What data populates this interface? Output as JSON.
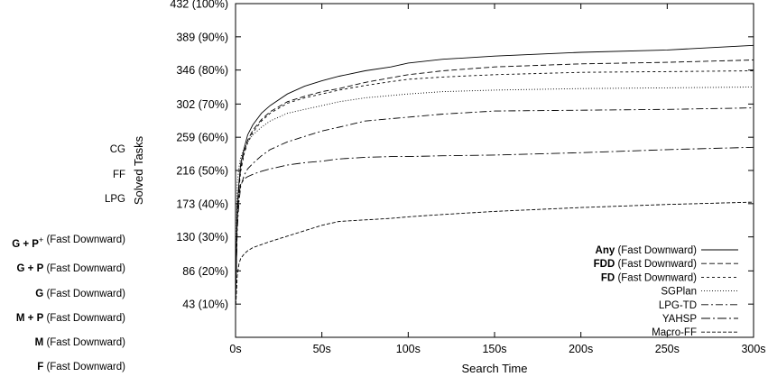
{
  "chart_data": {
    "type": "line",
    "title": "",
    "xlabel": "Search Time",
    "ylabel": "Solved Tasks",
    "xlim": [
      0,
      300
    ],
    "ylim": [
      0,
      432
    ],
    "x_ticks": [
      {
        "value": 0,
        "label": "0s"
      },
      {
        "value": 50,
        "label": "50s"
      },
      {
        "value": 100,
        "label": "100s"
      },
      {
        "value": 150,
        "label": "150s"
      },
      {
        "value": 200,
        "label": "200s"
      },
      {
        "value": 250,
        "label": "250s"
      },
      {
        "value": 300,
        "label": "300s"
      }
    ],
    "y_ticks": [
      {
        "value": 43,
        "label": "43 (10%)"
      },
      {
        "value": 86,
        "label": "86 (20%)"
      },
      {
        "value": 130,
        "label": "130 (30%)"
      },
      {
        "value": 173,
        "label": "173 (40%)"
      },
      {
        "value": 216,
        "label": "216 (50%)"
      },
      {
        "value": 259,
        "label": "259 (60%)"
      },
      {
        "value": 302,
        "label": "302 (70%)"
      },
      {
        "value": 346,
        "label": "346 (80%)"
      },
      {
        "value": 389,
        "label": "389 (90%)"
      },
      {
        "value": 432,
        "label": "432 (100%)"
      }
    ],
    "grid": false,
    "legend_position": "bottom-right",
    "series": [
      {
        "name": "Any",
        "name_suffix": " (Fast Downward)",
        "bold": true,
        "dash": "",
        "x": [
          0,
          1,
          2,
          3,
          5,
          7,
          10,
          15,
          20,
          30,
          40,
          50,
          60,
          75,
          90,
          100,
          120,
          150,
          200,
          250,
          300
        ],
        "y": [
          45,
          170,
          200,
          225,
          245,
          262,
          275,
          290,
          300,
          315,
          325,
          332,
          338,
          345,
          350,
          355,
          360,
          364,
          369,
          372,
          378
        ]
      },
      {
        "name": "FDD",
        "name_suffix": " (Fast Downward)",
        "bold": true,
        "dash": "6,3",
        "x": [
          0,
          1,
          2,
          3,
          5,
          7,
          10,
          15,
          20,
          30,
          40,
          50,
          60,
          75,
          90,
          100,
          120,
          150,
          200,
          250,
          300
        ],
        "y": [
          42,
          160,
          195,
          220,
          240,
          255,
          268,
          282,
          292,
          305,
          312,
          318,
          322,
          330,
          336,
          340,
          345,
          350,
          354,
          356,
          359
        ]
      },
      {
        "name": "FD",
        "name_suffix": " (Fast Downward)",
        "bold": true,
        "dash": "3,3",
        "x": [
          0,
          1,
          2,
          3,
          5,
          7,
          10,
          15,
          20,
          30,
          40,
          50,
          60,
          75,
          90,
          100,
          120,
          150,
          200,
          250,
          300
        ],
        "y": [
          40,
          155,
          192,
          215,
          238,
          252,
          265,
          280,
          290,
          303,
          310,
          315,
          320,
          326,
          331,
          334,
          337,
          340,
          343,
          344,
          345
        ]
      },
      {
        "name": "SGPlan",
        "name_suffix": "",
        "bold": false,
        "dash": "1,2",
        "x": [
          0,
          1,
          2,
          3,
          5,
          7,
          10,
          15,
          20,
          30,
          40,
          50,
          60,
          75,
          90,
          100,
          120,
          150,
          200,
          250,
          300
        ],
        "y": [
          60,
          200,
          220,
          233,
          245,
          253,
          262,
          272,
          280,
          290,
          295,
          300,
          305,
          310,
          313,
          315,
          318,
          320,
          322,
          323,
          324
        ]
      },
      {
        "name": "LPG-TD",
        "name_suffix": "",
        "bold": false,
        "dash": "8,3,2,3",
        "x": [
          0,
          1,
          2,
          3,
          5,
          7,
          10,
          15,
          20,
          30,
          40,
          50,
          60,
          75,
          90,
          100,
          120,
          150,
          200,
          250,
          300
        ],
        "y": [
          50,
          140,
          175,
          195,
          210,
          218,
          225,
          235,
          243,
          253,
          260,
          267,
          272,
          280,
          283,
          285,
          289,
          293,
          294,
          295,
          297
        ]
      },
      {
        "name": "YAHSP",
        "name_suffix": "",
        "bold": false,
        "dash": "10,3,2,3",
        "x": [
          0,
          1,
          2,
          3,
          5,
          7,
          10,
          15,
          20,
          30,
          40,
          50,
          60,
          75,
          90,
          100,
          120,
          150,
          200,
          250,
          300
        ],
        "y": [
          40,
          150,
          185,
          198,
          205,
          208,
          211,
          215,
          218,
          223,
          226,
          228,
          231,
          233,
          234,
          234,
          235,
          236,
          239,
          243,
          246
        ]
      },
      {
        "name": "Macro-FF",
        "name_suffix": "",
        "bold": false,
        "dash": "4,2",
        "x": [
          0,
          1,
          2,
          3,
          5,
          7,
          10,
          15,
          20,
          30,
          40,
          50,
          60,
          75,
          90,
          100,
          120,
          150,
          200,
          250,
          300
        ],
        "y": [
          35,
          80,
          95,
          102,
          108,
          112,
          116,
          120,
          124,
          131,
          138,
          145,
          150,
          152,
          154,
          156,
          159,
          163,
          168,
          172,
          175
        ]
      }
    ],
    "left_labels": [
      {
        "text": "CG",
        "bold": false,
        "suffix": "",
        "sup": ""
      },
      {
        "text": "FF",
        "bold": false,
        "suffix": "",
        "sup": ""
      },
      {
        "text": "LPG",
        "bold": false,
        "suffix": "",
        "sup": ""
      },
      {
        "text": "G + P",
        "bold": true,
        "suffix": " (Fast Downward)",
        "sup": "+"
      },
      {
        "text": "G + P",
        "bold": true,
        "suffix": " (Fast Downward)",
        "sup": ""
      },
      {
        "text": "G",
        "bold": true,
        "suffix": " (Fast Downward)",
        "sup": ""
      },
      {
        "text": "M + P",
        "bold": true,
        "suffix": " (Fast Downward)",
        "sup": ""
      },
      {
        "text": "M",
        "bold": true,
        "suffix": " (Fast Downward)",
        "sup": ""
      },
      {
        "text": "F",
        "bold": true,
        "suffix": " (Fast Downward)",
        "sup": ""
      }
    ]
  }
}
